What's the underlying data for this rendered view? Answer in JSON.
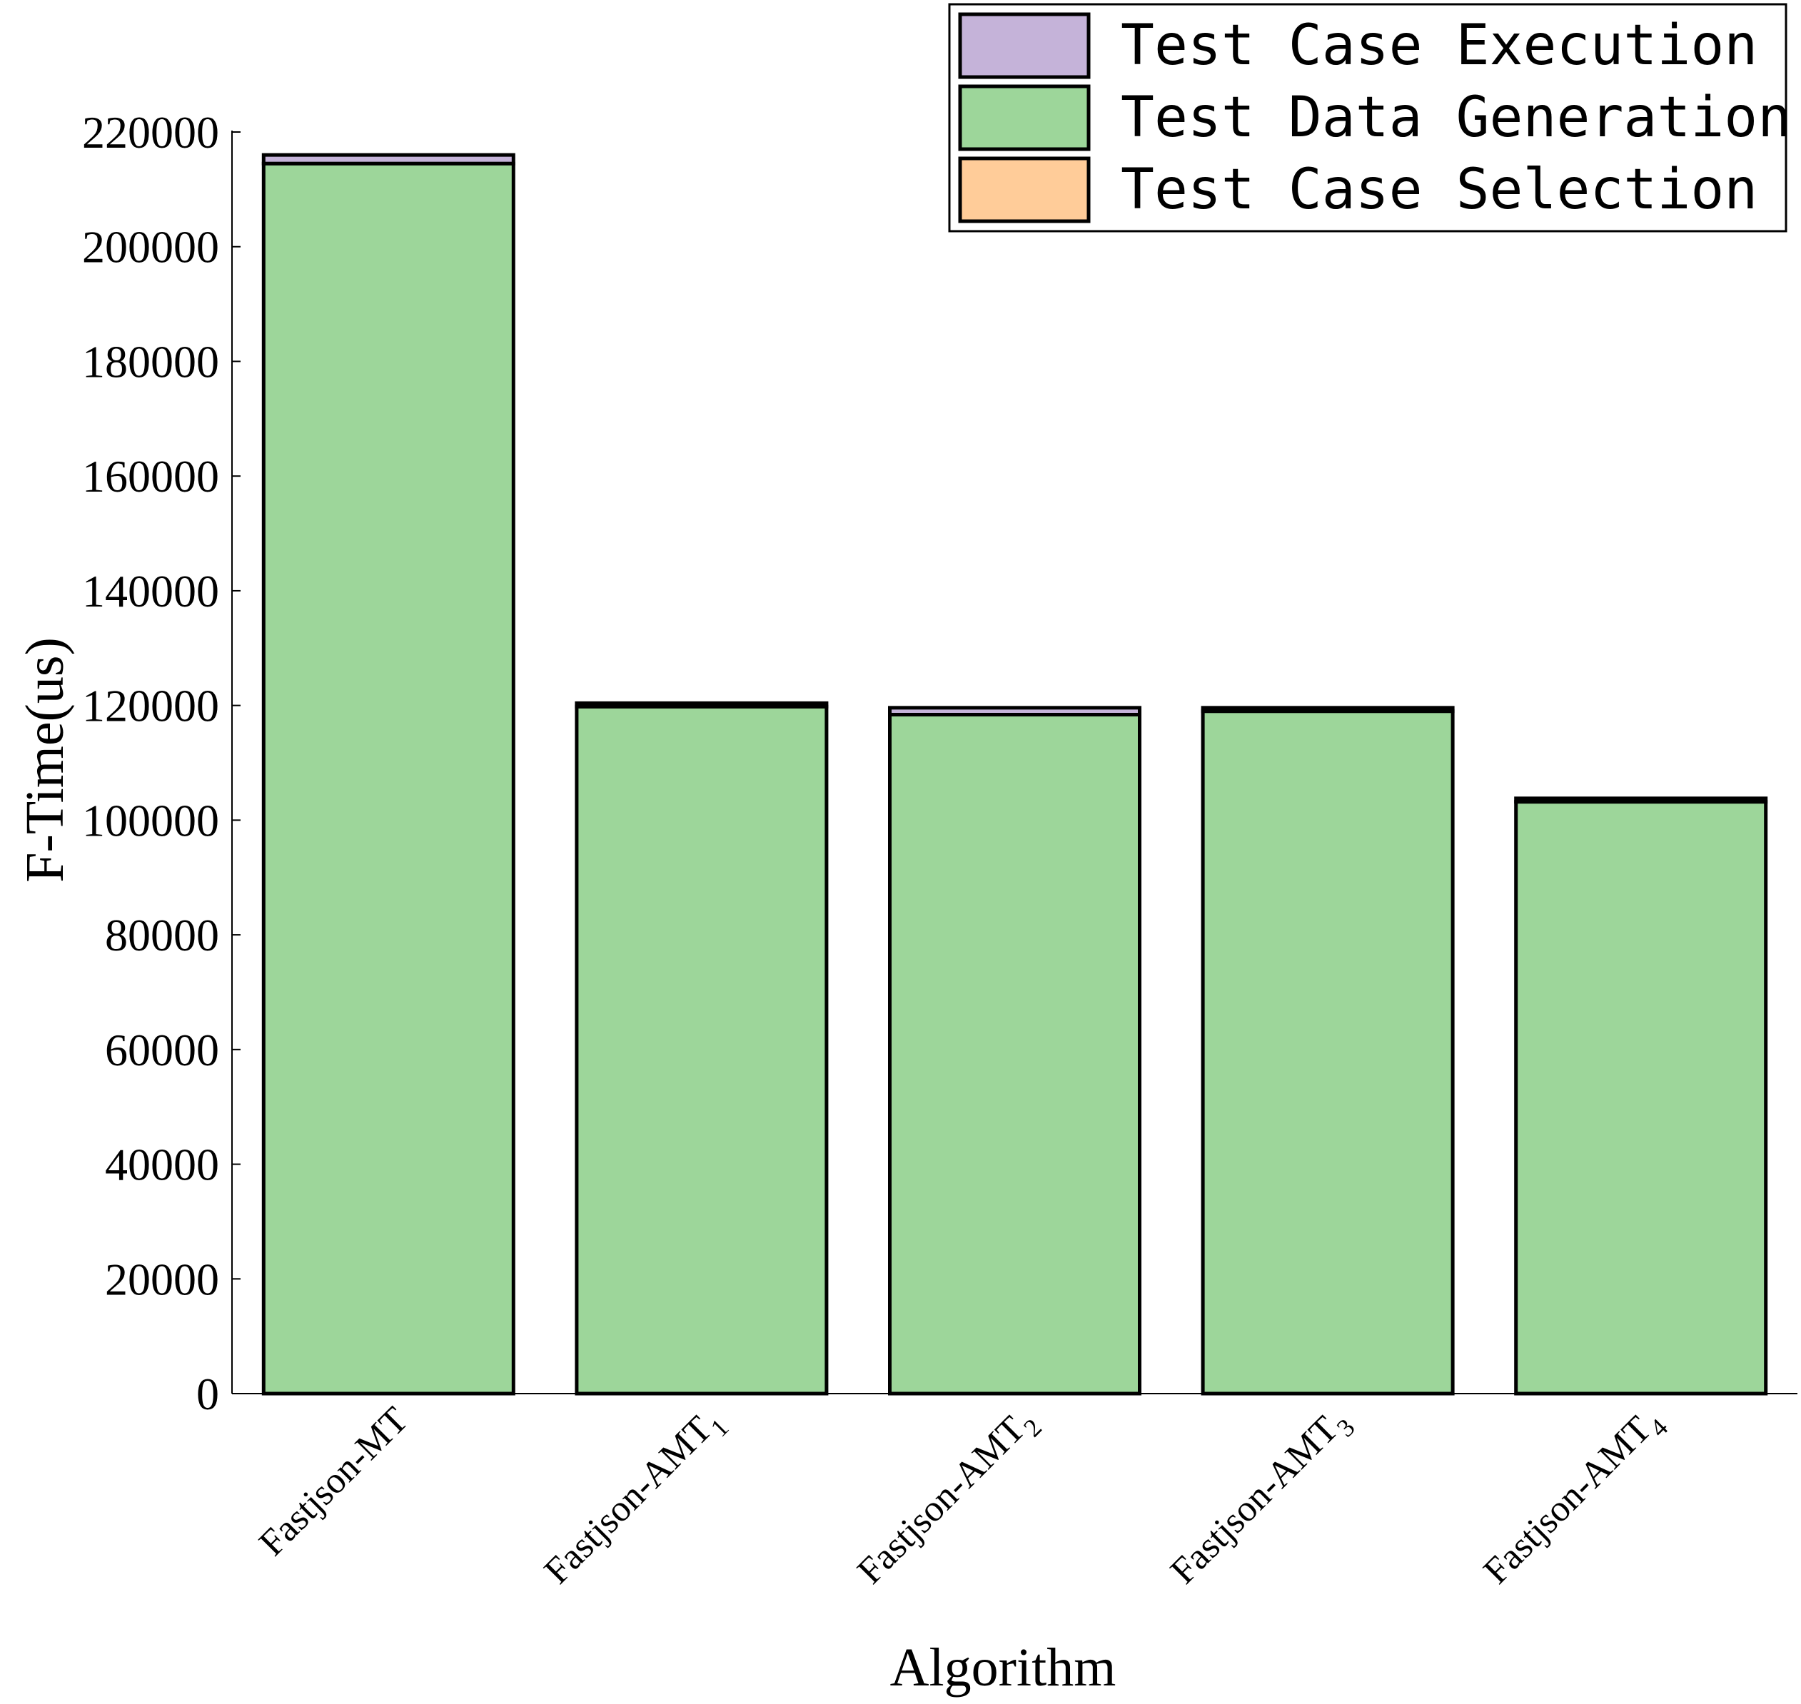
{
  "chart_data": {
    "type": "bar",
    "stacked": true,
    "xlabel": "Algorithm",
    "ylabel": "F-Time(us)",
    "ylim": [
      0,
      220000
    ],
    "yticks": [
      0,
      20000,
      40000,
      60000,
      80000,
      100000,
      120000,
      140000,
      160000,
      180000,
      200000,
      220000
    ],
    "grid": false,
    "legend_position": "top-right",
    "categories": [
      {
        "base": "Fastjson-MT",
        "sub": ""
      },
      {
        "base": "Fastjson-AMT",
        "sub": "1"
      },
      {
        "base": "Fastjson-AMT",
        "sub": "2"
      },
      {
        "base": "Fastjson-AMT",
        "sub": "3"
      },
      {
        "base": "Fastjson-AMT",
        "sub": "4"
      }
    ],
    "series": [
      {
        "name": "Test Case Selection",
        "color": "#ffcc99",
        "values": [
          0,
          0,
          0,
          0,
          0
        ]
      },
      {
        "name": "Test Data Generation",
        "color": "#9dd69a",
        "values": [
          214500,
          119800,
          118400,
          119000,
          103200
        ]
      },
      {
        "name": "Test Case Execution",
        "color": "#c5b3d9",
        "values": [
          1500,
          600,
          1200,
          600,
          600
        ]
      }
    ],
    "legend_order": [
      "Test Case Execution",
      "Test Data Generation",
      "Test Case Selection"
    ]
  }
}
